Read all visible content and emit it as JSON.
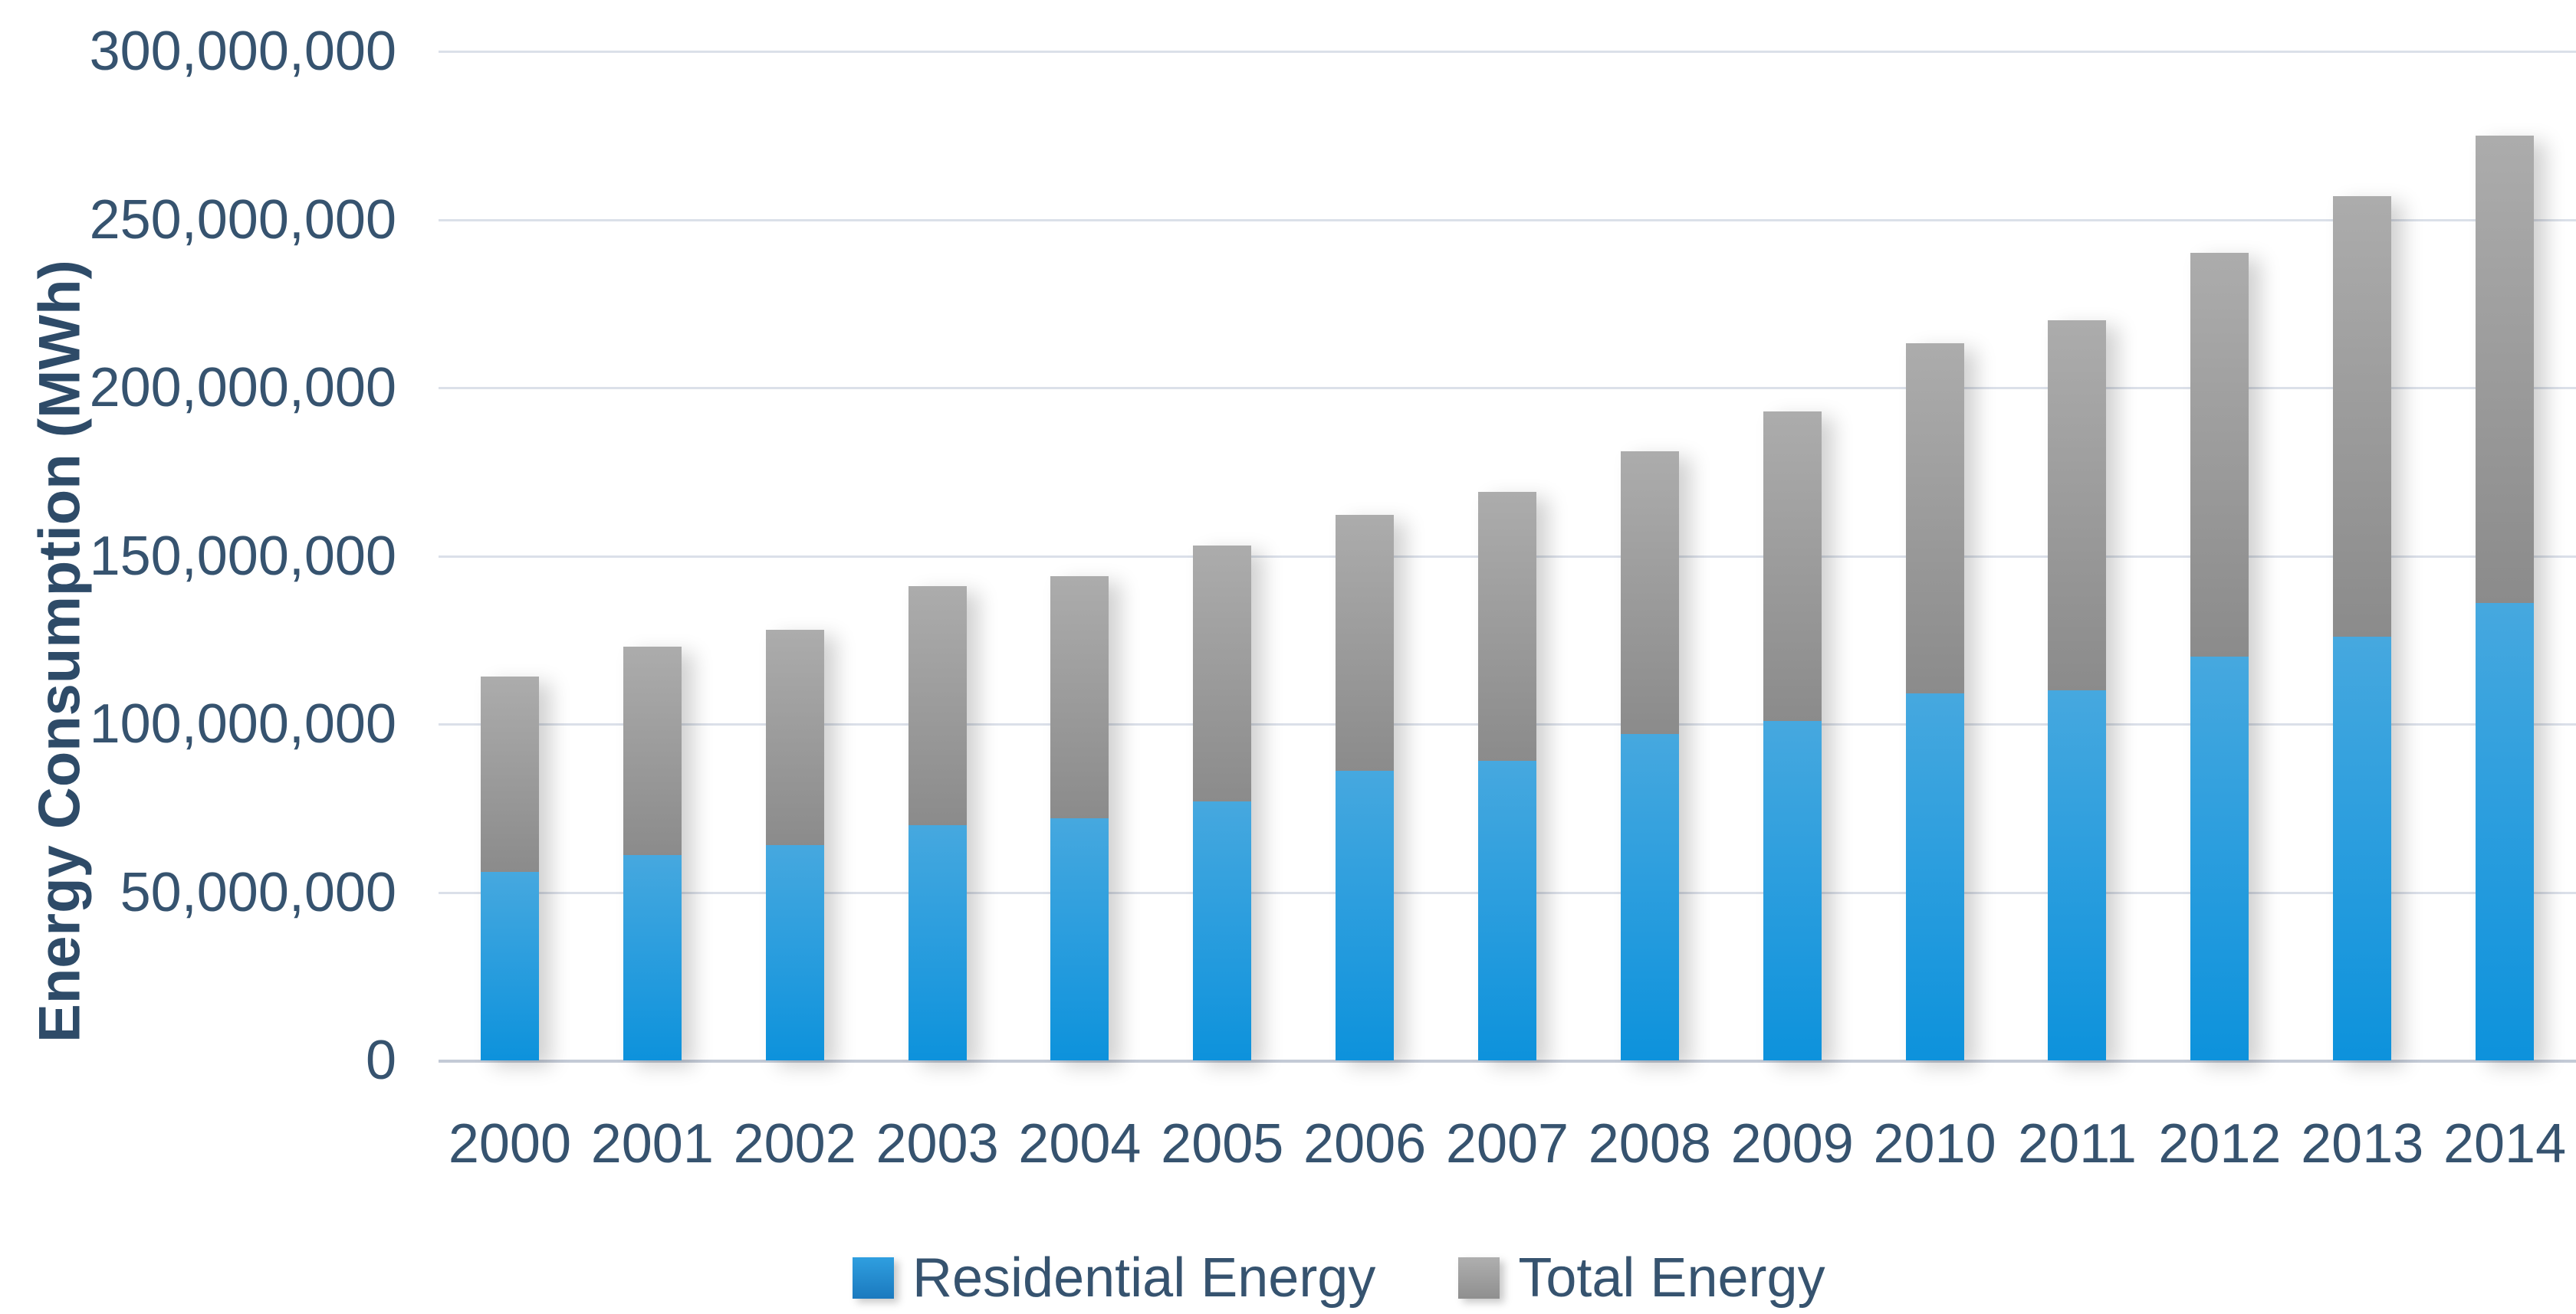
{
  "page": {
    "background": "#ffffff"
  },
  "y_axis": {
    "title": "Energy Consumption (MWh)",
    "tick_labels": [
      "300,000,000",
      "250,000,000",
      "200,000,000",
      "150,000,000",
      "100,000,000",
      "50,000,000",
      "0"
    ]
  },
  "x_axis": {
    "tick_labels": [
      "2000",
      "2001",
      "2002",
      "2003",
      "2004",
      "2005",
      "2006",
      "2007",
      "2008",
      "2009",
      "2010",
      "2011",
      "2012",
      "2013",
      "2014"
    ]
  },
  "legend": {
    "items": [
      {
        "label": "Residential Energy",
        "color_top": "#2f9fe0",
        "color_bottom": "#1b79be"
      },
      {
        "label": "Total Energy",
        "color_top": "#afafaf",
        "color_bottom": "#8f8f8f"
      }
    ],
    "position": "bottom"
  },
  "chart_data": {
    "type": "bar",
    "stacked": true,
    "title": "",
    "xlabel": "",
    "ylabel": "Energy Consumption (MWh)",
    "categories": [
      "2000",
      "2001",
      "2002",
      "2003",
      "2004",
      "2005",
      "2006",
      "2007",
      "2008",
      "2009",
      "2010",
      "2011",
      "2012",
      "2013",
      "2014"
    ],
    "series": [
      {
        "name": "Residential Energy",
        "color": "#2b9fdc",
        "values_mwh": [
          56000000,
          61000000,
          64000000,
          70000000,
          72000000,
          77000000,
          86000000,
          89000000,
          97000000,
          101000000,
          109000000,
          110000000,
          120000000,
          126000000,
          136000000
        ]
      },
      {
        "name": "Total Energy",
        "color": "#9e9e9e",
        "values_mwh": [
          114000000,
          123000000,
          128000000,
          141000000,
          144000000,
          153000000,
          162000000,
          169000000,
          181000000,
          193000000,
          213000000,
          220000000,
          240000000,
          257000000,
          275000000
        ],
        "rendered_as": "gray segment stacked above residential, segment height equals total minus residential"
      }
    ],
    "ylim": [
      0,
      300000000
    ],
    "ytick_step": 50000000,
    "grid": "horizontal-only",
    "legend_position": "bottom"
  },
  "colors": {
    "residential_bar_top": "#46a8df",
    "residential_bar_bottom": "#0d92dc",
    "total_bar_top": "#acacac",
    "total_bar_bottom": "#8b8b8b",
    "gridline": "#dbe0e9",
    "axis_line": "#c3cad6",
    "text": "#36536f"
  }
}
